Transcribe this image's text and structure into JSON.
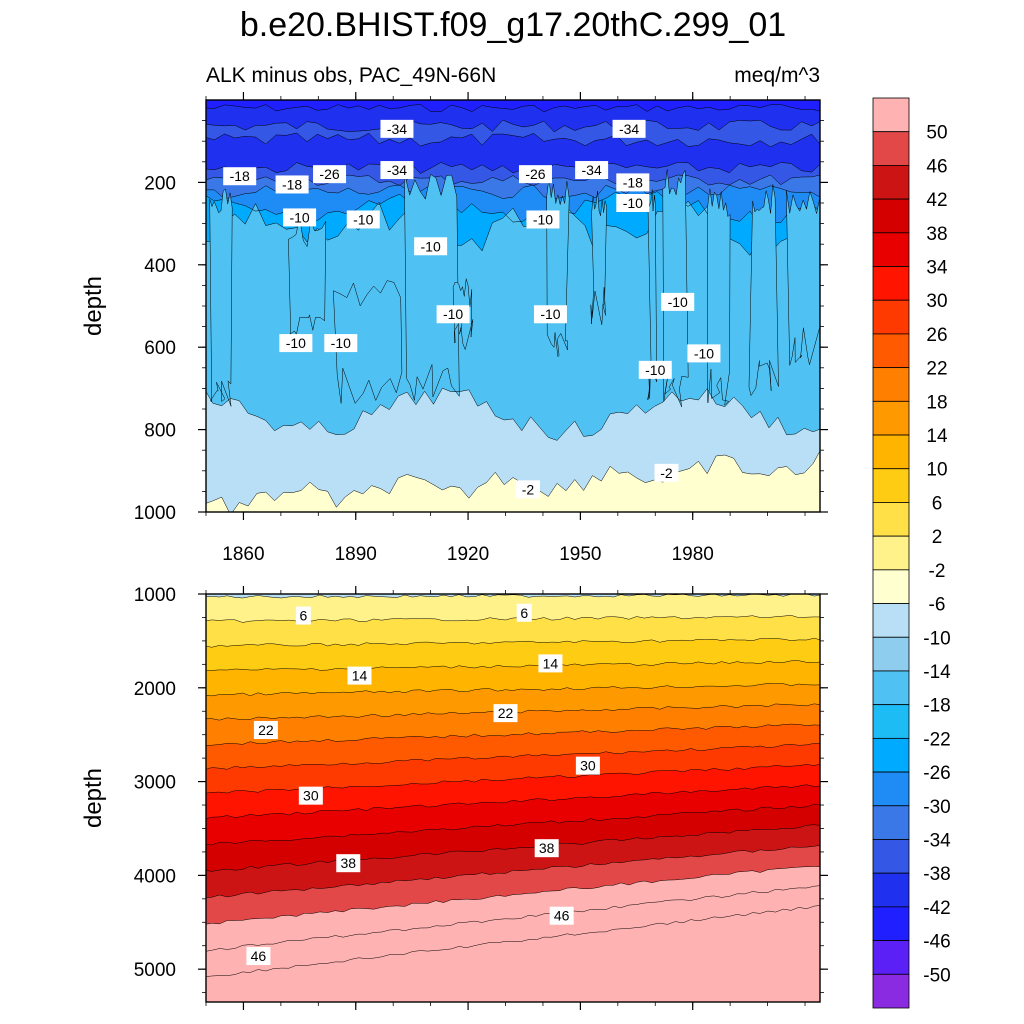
{
  "title": "b.e20.BHIST.f09_g17.20thC.299_01",
  "colors": {
    "levels": [
      "#8a2be2",
      "#5a20f5",
      "#1f1fff",
      "#1f30ee",
      "#3557e6",
      "#3a78e8",
      "#1e8cf4",
      "#00aaff",
      "#1ebcf4",
      "#4fc1f2",
      "#8fcdee",
      "#b8dff5",
      "#ffffd0",
      "#fff28a",
      "#ffe047",
      "#ffcc14",
      "#ffb400",
      "#ff9900",
      "#ff7f00",
      "#ff5a00",
      "#ff3a00",
      "#ff1400",
      "#e80000",
      "#d40000",
      "#cc1414",
      "#e24848",
      "#ffb2b2"
    ]
  },
  "colorbar": {
    "labels": [
      "50",
      "46",
      "42",
      "38",
      "34",
      "30",
      "26",
      "22",
      "18",
      "14",
      "10",
      "6",
      "2",
      "-2",
      "-6",
      "-10",
      "-14",
      "-18",
      "-22",
      "-26",
      "-30",
      "-34",
      "-38",
      "-42",
      "-46",
      "-50"
    ]
  },
  "chart_data": [
    {
      "type": "heatmap",
      "title": "ALK minus obs, PAC_49N-66N",
      "units": "meq/m^3",
      "ylabel": "depth",
      "ylim": [
        1000,
        0
      ],
      "xlim": [
        1850,
        2014
      ],
      "x_ticks": [
        1860,
        1890,
        1920,
        1950,
        1980
      ],
      "y_ticks": [
        200,
        400,
        600,
        800,
        1000
      ],
      "contour_interval": 4,
      "levels": [
        -50,
        -46,
        -42,
        -38,
        -34,
        -30,
        -26,
        -22,
        -18,
        -14,
        -10,
        -6,
        -2,
        2,
        6,
        10,
        14,
        18,
        22,
        26,
        30,
        34,
        38,
        42,
        46,
        50
      ],
      "contour_labels": [
        {
          "value": "-34",
          "x": 1901,
          "y": 70
        },
        {
          "value": "-34",
          "x": 1963,
          "y": 70
        },
        {
          "value": "-34",
          "x": 1901,
          "y": 170
        },
        {
          "value": "-34",
          "x": 1953,
          "y": 170
        },
        {
          "value": "-26",
          "x": 1883,
          "y": 180
        },
        {
          "value": "-26",
          "x": 1938,
          "y": 180
        },
        {
          "value": "-18",
          "x": 1859,
          "y": 185
        },
        {
          "value": "-18",
          "x": 1873,
          "y": 205
        },
        {
          "value": "-18",
          "x": 1964,
          "y": 200
        },
        {
          "value": "-10",
          "x": 1875,
          "y": 285
        },
        {
          "value": "-10",
          "x": 1892,
          "y": 290
        },
        {
          "value": "-10",
          "x": 1910,
          "y": 355
        },
        {
          "value": "-10",
          "x": 1940,
          "y": 290
        },
        {
          "value": "-10",
          "x": 1964,
          "y": 250
        },
        {
          "value": "-10",
          "x": 1916,
          "y": 520
        },
        {
          "value": "-10",
          "x": 1942,
          "y": 520
        },
        {
          "value": "-10",
          "x": 1874,
          "y": 590
        },
        {
          "value": "-10",
          "x": 1886,
          "y": 590
        },
        {
          "value": "-10",
          "x": 1976,
          "y": 490
        },
        {
          "value": "-10",
          "x": 1970,
          "y": 655
        },
        {
          "value": "-10",
          "x": 1983,
          "y": 615
        },
        {
          "value": "-2",
          "x": 1936,
          "y": 945
        },
        {
          "value": "-2",
          "x": 1973,
          "y": 905
        }
      ]
    },
    {
      "type": "heatmap",
      "ylabel": "depth",
      "ylim": [
        5350,
        1000
      ],
      "xlim": [
        1850,
        2014
      ],
      "y_ticks": [
        1000,
        2000,
        3000,
        4000,
        5000
      ],
      "contour_interval": 4,
      "levels": [
        -50,
        -46,
        -42,
        -38,
        -34,
        -30,
        -26,
        -22,
        -18,
        -14,
        -10,
        -6,
        -2,
        2,
        6,
        10,
        14,
        18,
        22,
        26,
        30,
        34,
        38,
        42,
        46,
        50
      ],
      "contour_labels": [
        {
          "value": "6",
          "x": 1876,
          "y": 1230
        },
        {
          "value": "6",
          "x": 1935,
          "y": 1200
        },
        {
          "value": "14",
          "x": 1891,
          "y": 1870
        },
        {
          "value": "14",
          "x": 1942,
          "y": 1740
        },
        {
          "value": "22",
          "x": 1866,
          "y": 2450
        },
        {
          "value": "22",
          "x": 1930,
          "y": 2270
        },
        {
          "value": "30",
          "x": 1878,
          "y": 3150
        },
        {
          "value": "30",
          "x": 1952,
          "y": 2830
        },
        {
          "value": "38",
          "x": 1888,
          "y": 3870
        },
        {
          "value": "38",
          "x": 1941,
          "y": 3710
        },
        {
          "value": "46",
          "x": 1864,
          "y": 4860
        },
        {
          "value": "46",
          "x": 1945,
          "y": 4430
        }
      ]
    }
  ]
}
